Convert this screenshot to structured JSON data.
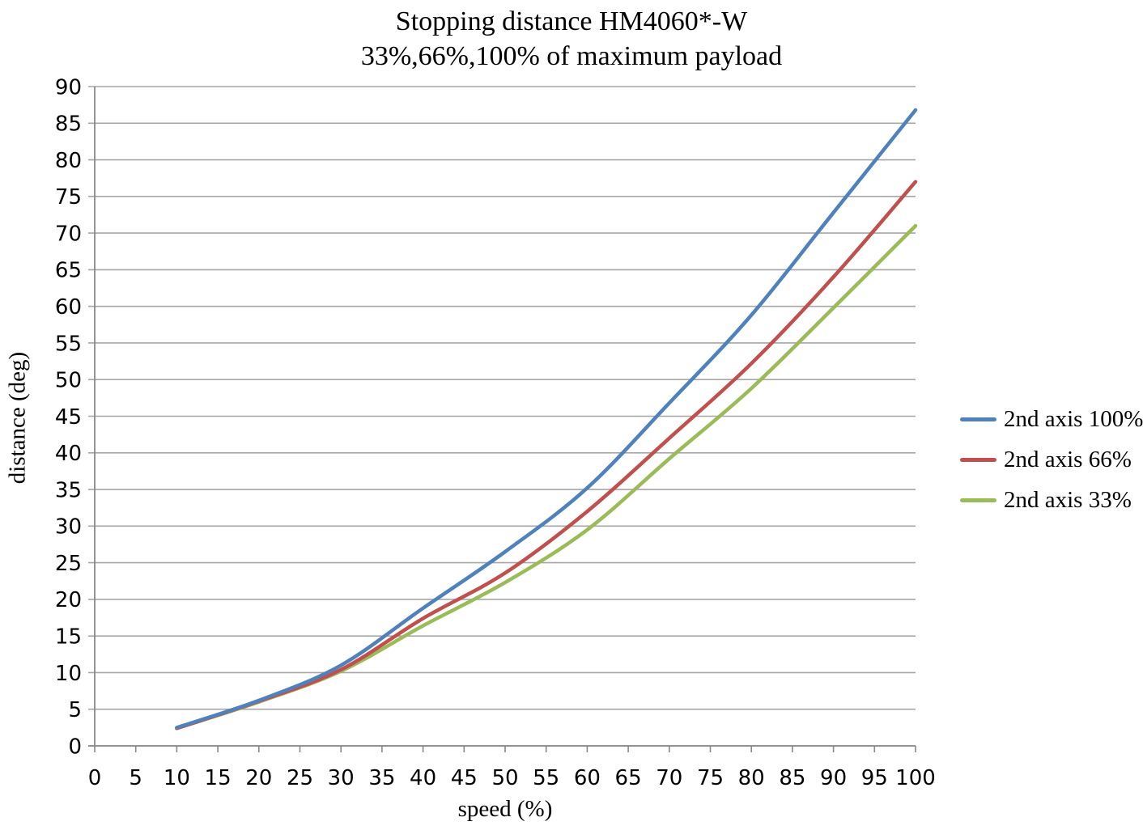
{
  "title": "Stopping distance HM4060*-W",
  "subtitle": "33%,66%,100% of maximum payload",
  "chart_data": {
    "type": "line",
    "title": "Stopping distance HM4060*-W",
    "subtitle": "33%,66%,100% of maximum payload",
    "xlabel": "speed (%)",
    "ylabel": "distance (deg)",
    "xlim": [
      0,
      100
    ],
    "ylim": [
      0,
      90
    ],
    "x_tick_step": 5,
    "y_tick_step": 5,
    "grid": true,
    "smoothed": true,
    "legend_position": "right",
    "x": [
      10,
      20,
      30,
      40,
      50,
      60,
      70,
      80,
      90,
      100
    ],
    "series": [
      {
        "name": "2nd axis 100%",
        "color": "#4F81BD",
        "values": [
          2.5,
          6.2,
          11.0,
          18.8,
          26.5,
          35.2,
          46.8,
          58.8,
          72.8,
          86.8
        ]
      },
      {
        "name": "2nd axis 66%",
        "color": "#C0504D",
        "values": [
          2.4,
          6.1,
          10.4,
          17.4,
          23.6,
          32.0,
          42.0,
          52.2,
          64.0,
          77.0
        ]
      },
      {
        "name": "2nd axis 33%",
        "color": "#9BBB59",
        "values": [
          2.4,
          6.0,
          10.2,
          16.4,
          22.3,
          29.5,
          39.2,
          48.8,
          59.8,
          71.0
        ]
      }
    ],
    "grid_color": "#A6A6A6",
    "axis_color": "#898989",
    "text_color": "#000000",
    "tick_label_font_px": 26
  }
}
